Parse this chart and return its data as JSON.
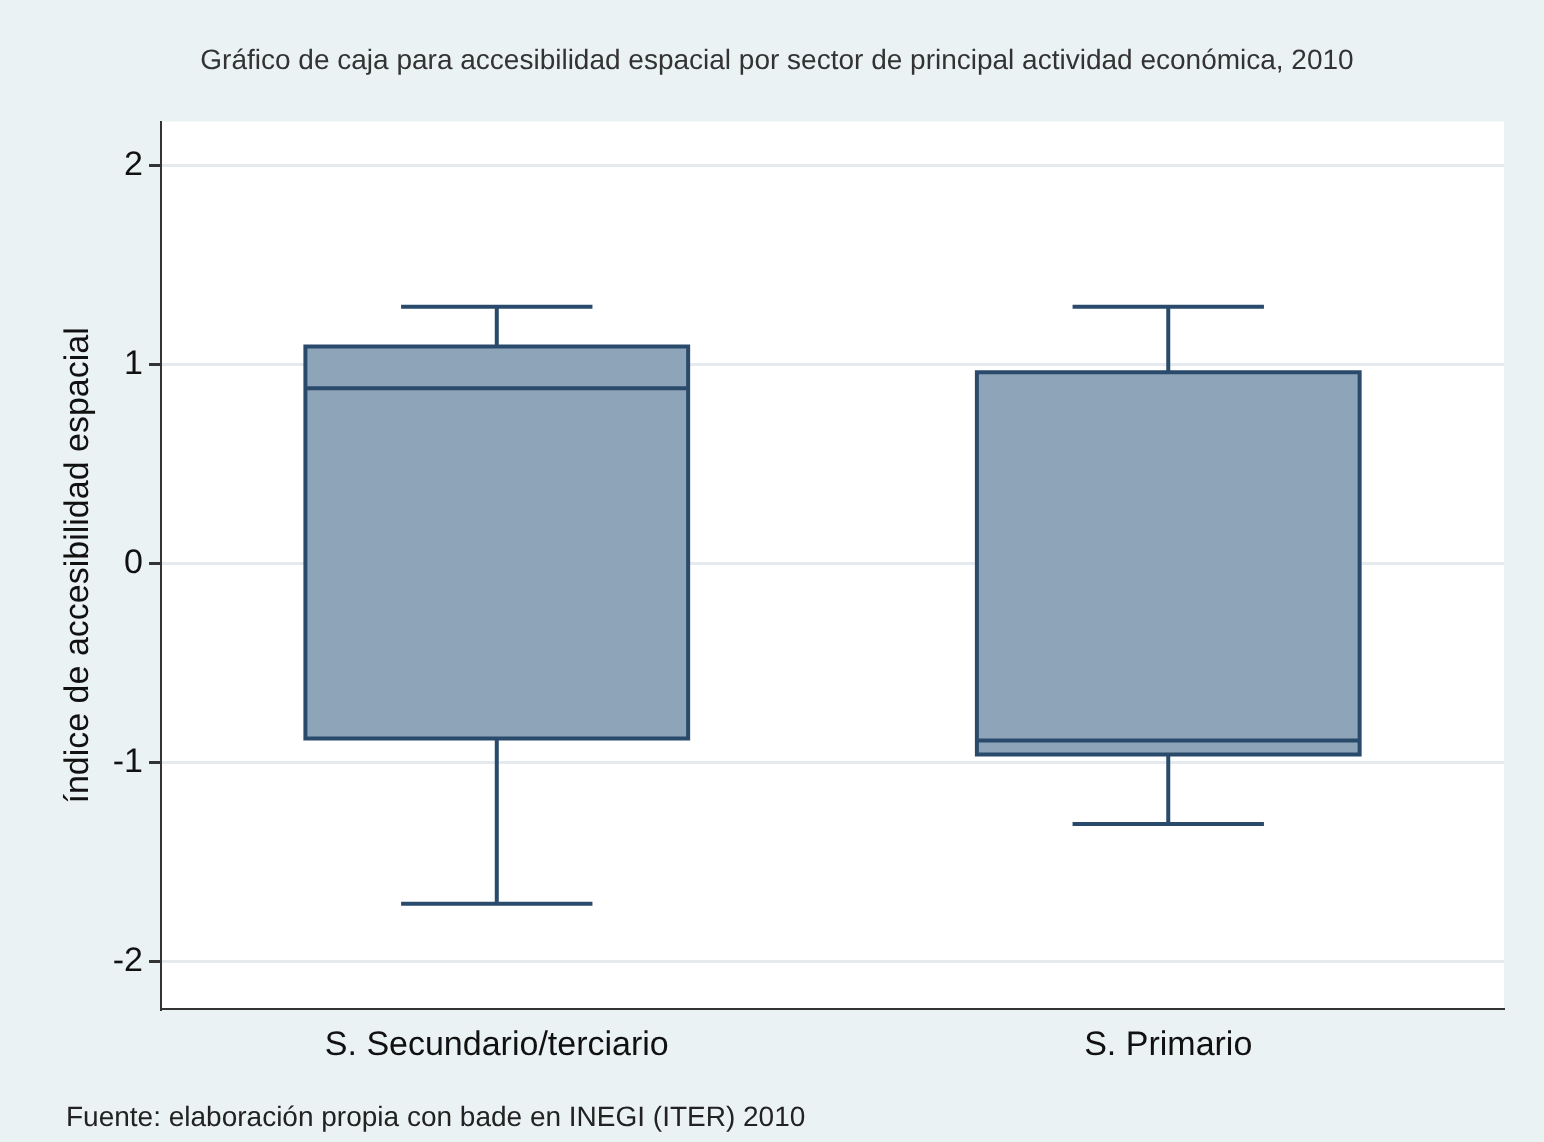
{
  "chart_data": {
    "type": "box",
    "title": "Gráfico de caja para accesibilidad espacial por sector de principal actividad económica, 2010",
    "ylabel": "índice de accesibilidad espacial",
    "categories": [
      "S. Secundario/terciario",
      "S. Primario"
    ],
    "boxes": [
      {
        "low": -1.71,
        "q1": -0.88,
        "median": 0.88,
        "q3": 1.09,
        "high": 1.29
      },
      {
        "low": -1.31,
        "q1": -0.96,
        "median": -0.89,
        "q3": 0.96,
        "high": 1.29
      }
    ],
    "color": "#8ea5b9",
    "ylim": [
      -2.24,
      2.22
    ],
    "yticks": [
      -2,
      -1,
      0,
      1,
      2
    ],
    "grid": "y",
    "legend": false,
    "annotations": [
      "Fuente: elaboración propia con bade en INEGI (ITER) 2010"
    ]
  }
}
